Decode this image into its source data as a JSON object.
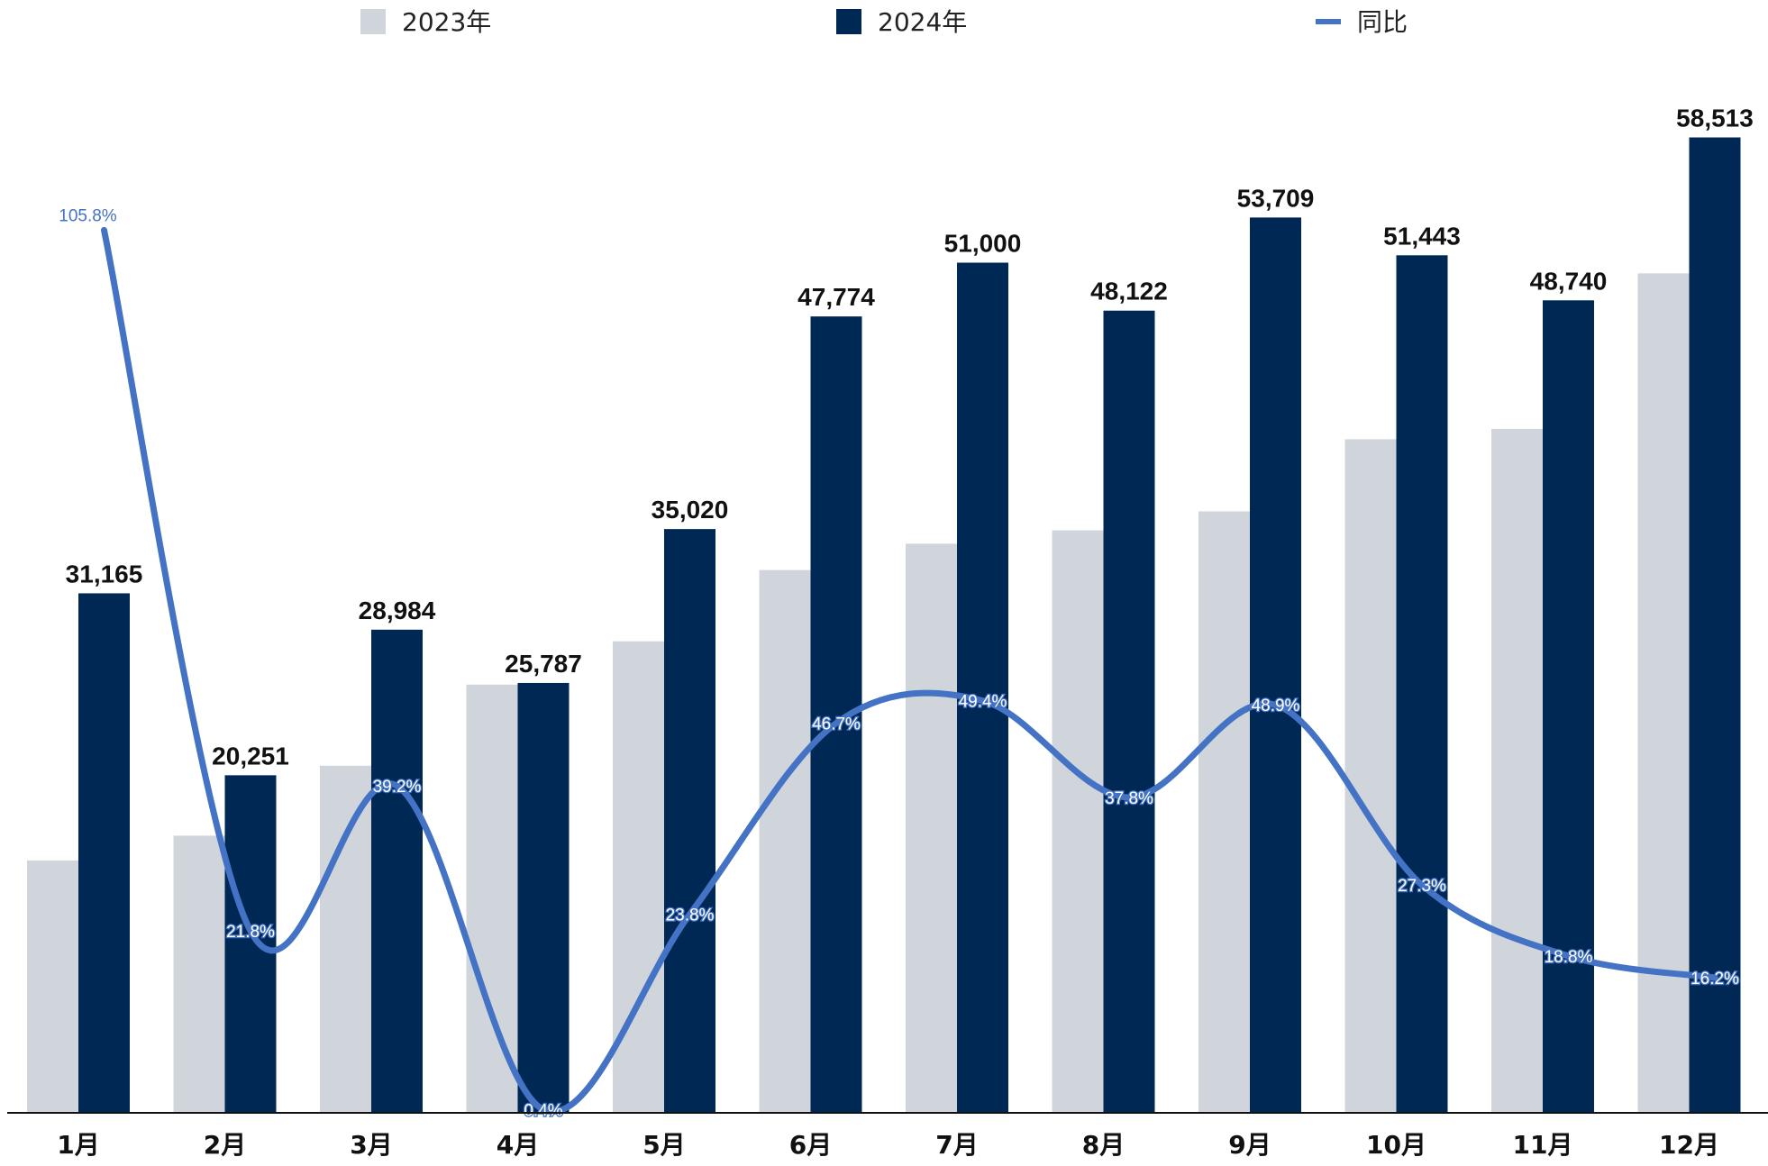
{
  "chart_data": {
    "type": "bar",
    "categories": [
      "1月",
      "2月",
      "3月",
      "4月",
      "5月",
      "6月",
      "7月",
      "8月",
      "9月",
      "10月",
      "11月",
      "12月"
    ],
    "series": [
      {
        "name": "2023年",
        "type": "bar",
        "color": "#d0d5dc",
        "values": [
          15141,
          16626,
          20822,
          25687,
          28286,
          32561,
          34142,
          34943,
          36080,
          40407,
          41024,
          50359
        ]
      },
      {
        "name": "2024年",
        "type": "bar",
        "color": "#002855",
        "values": [
          31165,
          20251,
          28984,
          25787,
          35020,
          47774,
          51000,
          48122,
          53709,
          51443,
          48740,
          58513
        ],
        "labels": [
          "31,165",
          "20,251",
          "28,984",
          "25,787",
          "35,020",
          "47,774",
          "51,000",
          "48,122",
          "53,709",
          "51,443",
          "48,740",
          "58,513"
        ]
      },
      {
        "name": "同比",
        "type": "line",
        "color": "#4472c4",
        "axis": "secondary",
        "values": [
          105.8,
          21.8,
          39.2,
          0.4,
          23.8,
          46.7,
          49.4,
          37.8,
          48.9,
          27.3,
          18.8,
          16.2
        ],
        "labels": [
          "105.8%",
          "21.8%",
          "39.2%",
          "0.4%",
          "23.8%",
          "46.7%",
          "49.4%",
          "37.8%",
          "48.9%",
          "27.3%",
          "18.8%",
          "16.2%"
        ]
      }
    ],
    "ylim": [
      0,
      62000
    ],
    "y2lim": [
      0,
      112
    ],
    "legend": "top",
    "grid": false
  }
}
